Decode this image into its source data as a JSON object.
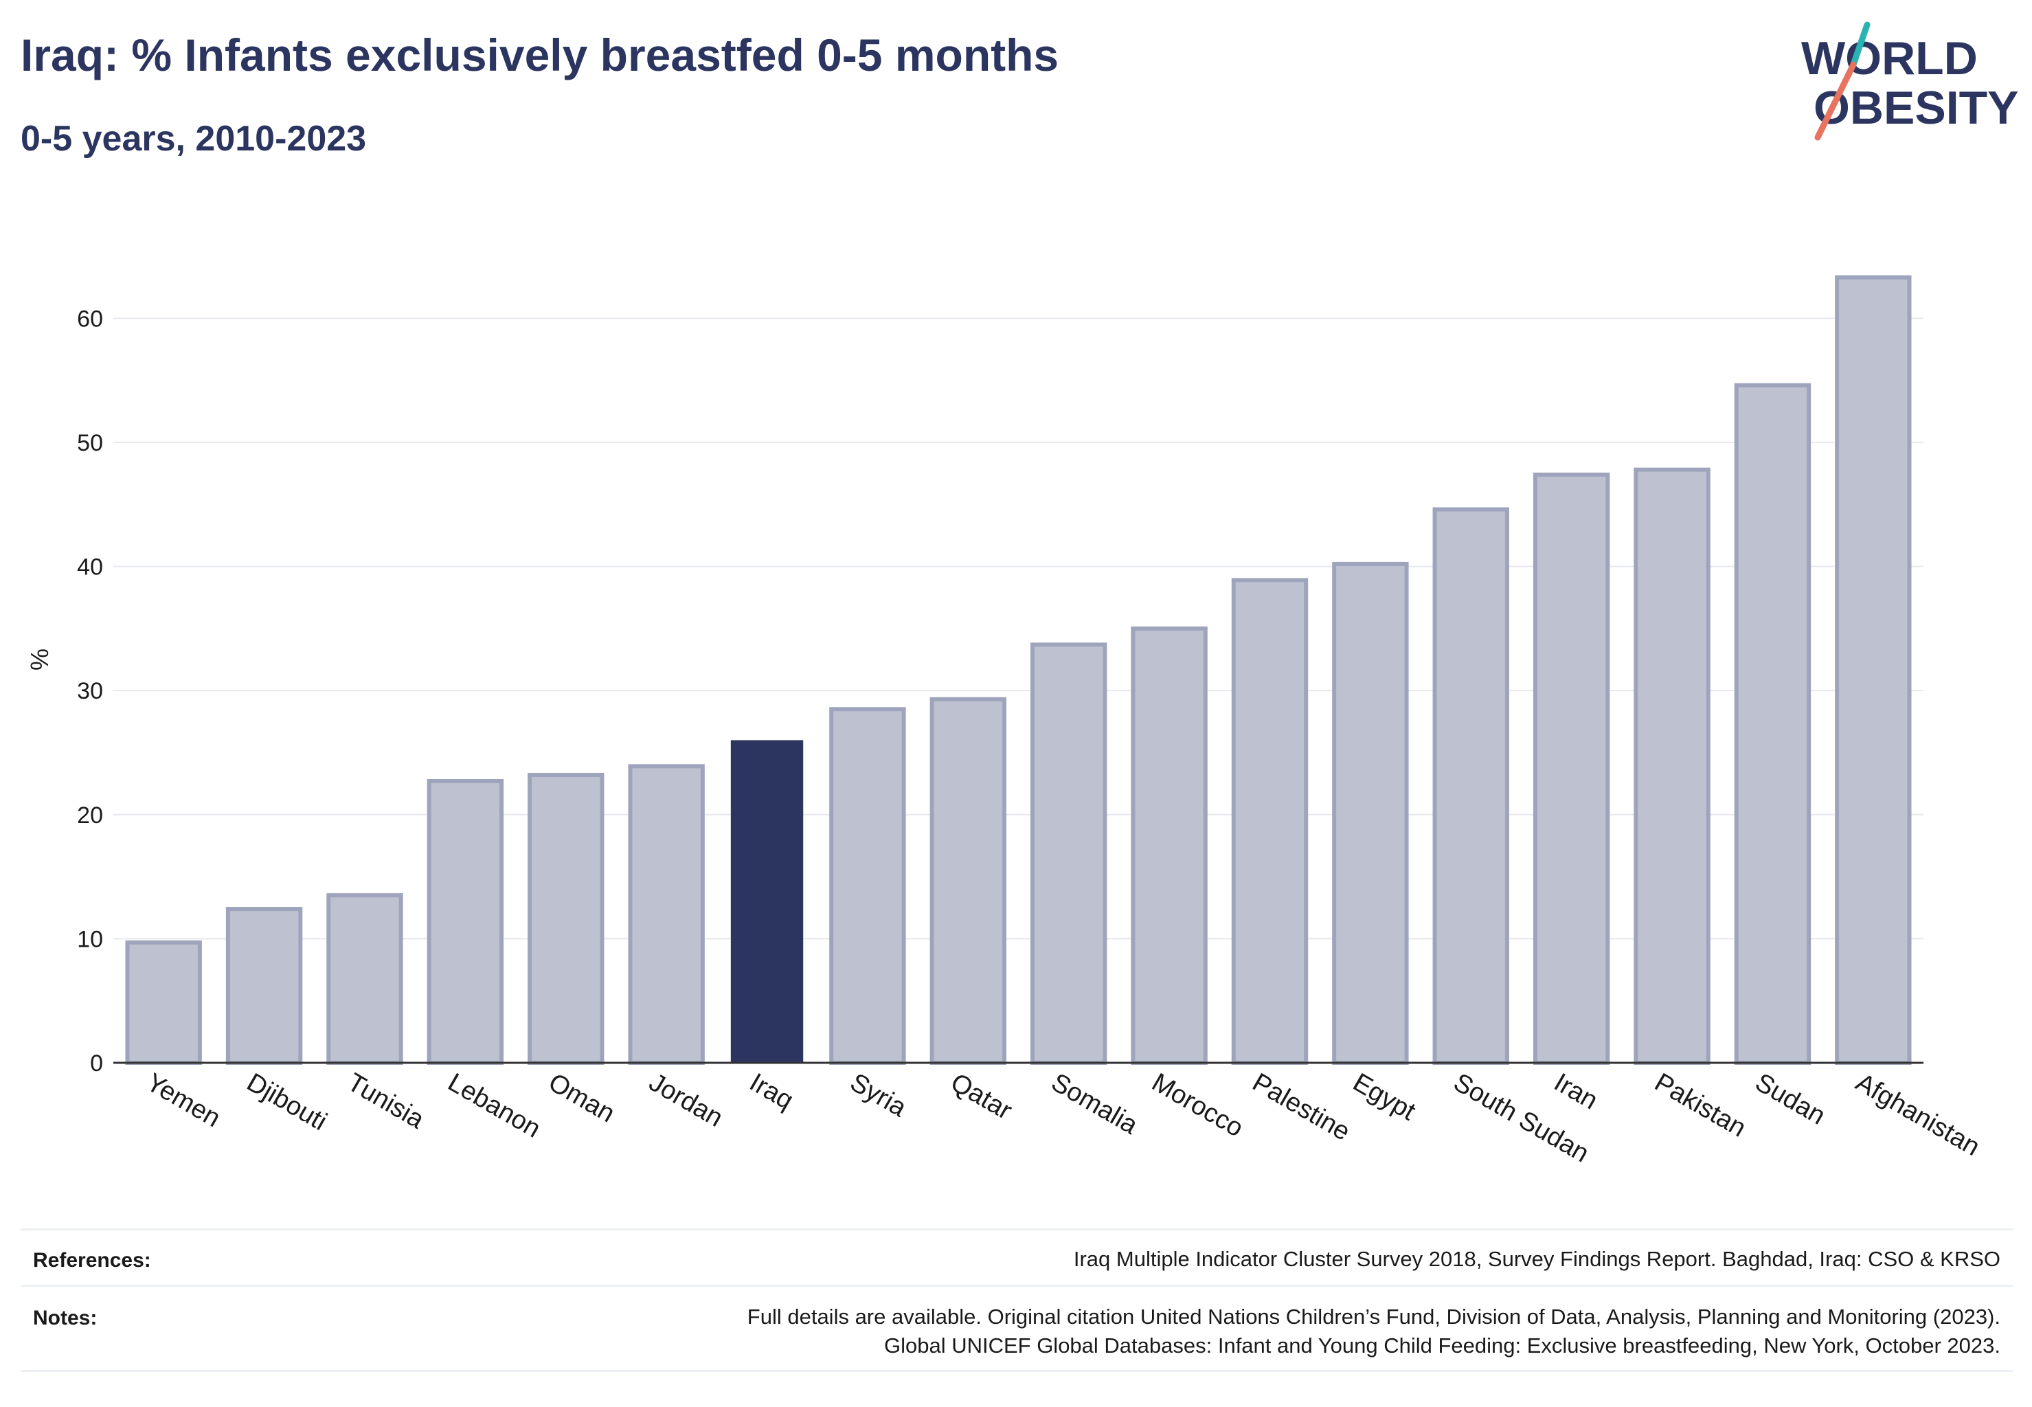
{
  "header": {
    "title": "Iraq: % Infants exclusively breastfed 0-5 months",
    "subtitle": "0-5 years, 2010-2023"
  },
  "logo": {
    "line1": "WORLD",
    "line2": "OBESITY"
  },
  "colors": {
    "highlight": "#2b3560",
    "bar_fill": "#bec2d0",
    "bar_stroke": "#9ea4bb",
    "grid": "#e6e8ee",
    "logo_teal": "#2bb3b1",
    "logo_coral": "#e8735f"
  },
  "chart_data": {
    "type": "bar",
    "categories": [
      "Yemen",
      "Djibouti",
      "Tunisia",
      "Lebanon",
      "Oman",
      "Jordan",
      "Iraq",
      "Syria",
      "Qatar",
      "Somalia",
      "Morocco",
      "Palestine",
      "Egypt",
      "South Sudan",
      "Iran",
      "Pakistan",
      "Sudan",
      "Afghanistan"
    ],
    "values": [
      9.7,
      12.4,
      13.5,
      22.7,
      23.2,
      23.9,
      26.0,
      28.5,
      29.3,
      33.7,
      35.0,
      38.9,
      40.2,
      44.6,
      47.4,
      47.8,
      54.6,
      63.3
    ],
    "highlight": "Iraq",
    "ylabel": "%",
    "ylim": [
      0,
      65
    ],
    "yticks": [
      0,
      10,
      20,
      30,
      40,
      50,
      60
    ],
    "grid": true
  },
  "footer": {
    "references_label": "References:",
    "references_text": "Iraq Multiple Indicator Cluster Survey 2018, Survey Findings Report. Baghdad, Iraq: CSO & KRSO",
    "notes_label": "Notes:",
    "notes_line1": "Full details are available. Original citation United Nations Children’s Fund, Division of Data, Analysis, Planning and Monitoring (2023).",
    "notes_line2": "Global UNICEF Global Databases: Infant and Young Child Feeding: Exclusive breastfeeding, New York, October 2023."
  }
}
